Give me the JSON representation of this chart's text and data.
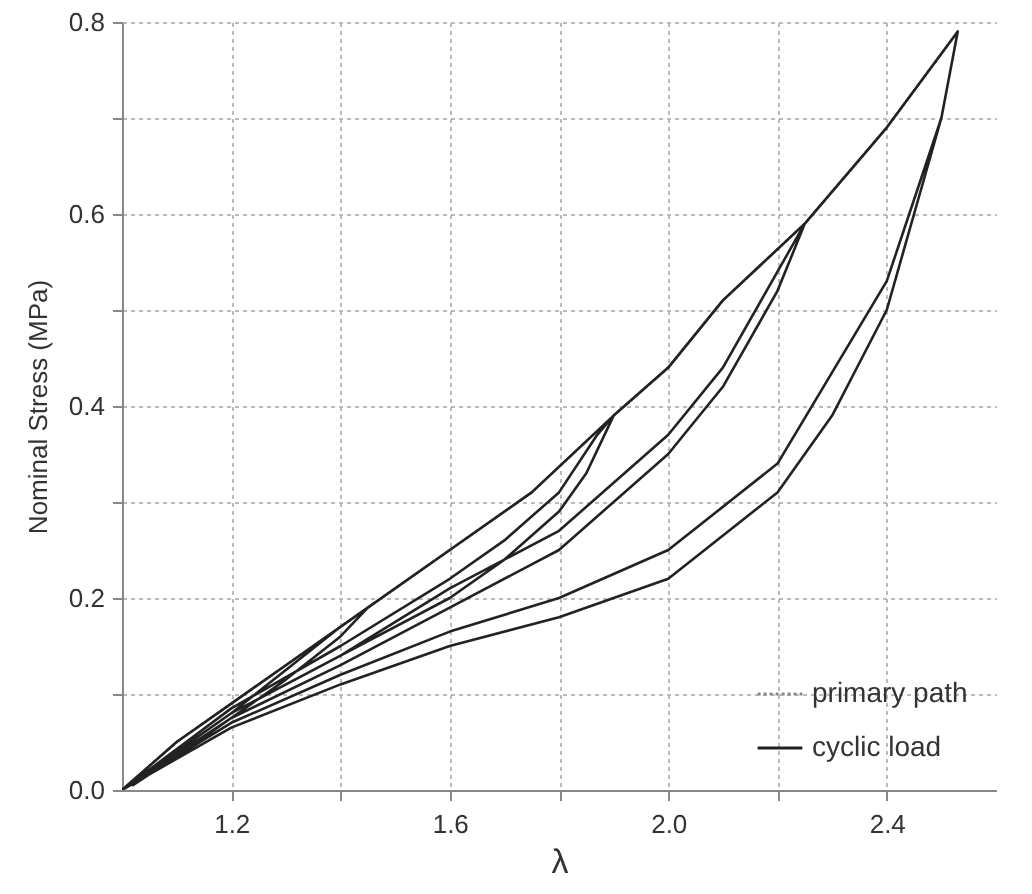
{
  "chart_data": {
    "type": "line",
    "xlabel": "λ",
    "ylabel": "Nominal Stress (MPa)",
    "xlim": [
      1.0,
      2.6
    ],
    "ylim": [
      0,
      0.8
    ],
    "xticks": [
      1.2,
      {
        "value": 1.4,
        "label": null
      },
      1.6,
      {
        "value": 1.8,
        "label": null
      },
      {
        "value": 2,
        "label": "2.0"
      },
      {
        "value": 2.2,
        "label": null
      },
      2.4
    ],
    "yticks": [
      {
        "value": 0,
        "label": "0.0"
      },
      {
        "value": 0.1,
        "label": null
      },
      0.2,
      {
        "value": 0.3,
        "label": null
      },
      0.4,
      {
        "value": 0.5,
        "label": null
      },
      0.6,
      {
        "value": 0.7,
        "label": null
      },
      0.8
    ],
    "grid": true,
    "legend": "bottom right",
    "series": [
      {
        "name": "primary path",
        "color": "#8a8a8a",
        "line_style": "dotted",
        "x": [
          1.0,
          1.1,
          1.2,
          1.3,
          1.45,
          1.6,
          1.75,
          1.9,
          2.0,
          2.1,
          2.25,
          2.4,
          2.53
        ],
        "values": [
          0,
          0.05,
          0.09,
          0.13,
          0.19,
          0.25,
          0.31,
          0.39,
          0.44,
          0.51,
          0.59,
          0.69,
          0.79
        ]
      },
      {
        "name": "cyclic load",
        "color": "#222222",
        "line_style": "solid",
        "x": [
          1.0,
          1.1,
          1.2,
          1.3,
          1.45,
          1.4,
          1.3,
          1.2,
          1.1,
          1.02,
          1.1,
          1.2,
          1.3,
          1.4,
          1.45,
          1.6,
          1.75,
          1.9,
          1.85,
          1.8,
          1.7,
          1.6,
          1.4,
          1.2,
          1.0,
          1.2,
          1.4,
          1.6,
          1.7,
          1.8,
          1.87,
          1.9,
          2.0,
          2.1,
          2.25,
          2.2,
          2.1,
          2.0,
          1.8,
          1.6,
          1.4,
          1.2,
          1.0,
          1.2,
          1.4,
          1.6,
          1.8,
          2.0,
          2.1,
          2.2,
          2.25,
          2.4,
          2.53,
          2.5,
          2.45,
          2.4,
          2.3,
          2.2,
          2.0,
          1.8,
          1.6,
          1.4,
          1.2,
          1.0,
          1.2,
          1.4,
          1.6,
          1.8,
          2.0,
          2.2,
          2.4,
          2.5,
          2.53
        ],
        "values": [
          0,
          0.05,
          0.09,
          0.13,
          0.19,
          0.16,
          0.115,
          0.075,
          0.035,
          0.005,
          0.04,
          0.08,
          0.125,
          0.17,
          0.19,
          0.25,
          0.31,
          0.39,
          0.33,
          0.29,
          0.24,
          0.2,
          0.14,
          0.08,
          0,
          0.085,
          0.15,
          0.22,
          0.26,
          0.31,
          0.37,
          0.39,
          0.44,
          0.51,
          0.59,
          0.52,
          0.42,
          0.35,
          0.25,
          0.19,
          0.13,
          0.075,
          0,
          0.08,
          0.14,
          0.21,
          0.27,
          0.37,
          0.44,
          0.54,
          0.59,
          0.69,
          0.79,
          0.7,
          0.6,
          0.5,
          0.39,
          0.31,
          0.22,
          0.18,
          0.15,
          0.11,
          0.065,
          0,
          0.07,
          0.12,
          0.165,
          0.2,
          0.25,
          0.34,
          0.53,
          0.7,
          0.79
        ]
      }
    ]
  }
}
